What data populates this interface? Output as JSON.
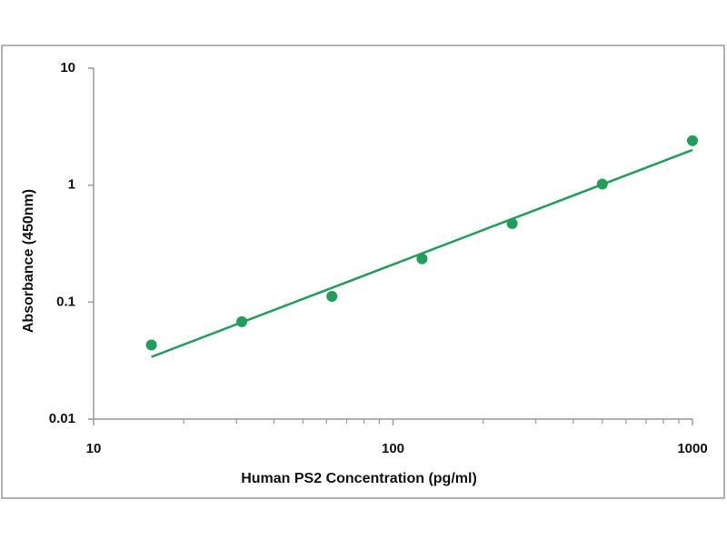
{
  "chart_data": {
    "type": "scatter",
    "xlabel": "Human PS2 Concentration (pg/ml)",
    "ylabel": "Absorbance (450nm)",
    "xscale": "log",
    "yscale": "log",
    "xlim": [
      10,
      1000
    ],
    "ylim": [
      0.01,
      10
    ],
    "xticks": [
      10,
      100,
      1000
    ],
    "xminorticks": [
      20,
      30,
      40,
      50,
      60,
      70,
      80,
      90,
      200,
      300,
      400,
      500,
      600,
      700,
      800,
      900
    ],
    "yticks": [
      0.01,
      0.1,
      1,
      10
    ],
    "series": [
      {
        "type": "scatter",
        "color": "#1f9e5c",
        "x": [
          15.6,
          31.25,
          62.5,
          125,
          250,
          500,
          1000
        ],
        "values": [
          0.043,
          0.068,
          0.112,
          0.235,
          0.47,
          1.02,
          2.4
        ]
      },
      {
        "type": "line",
        "color": "#1f9e5c",
        "x": [
          15.6,
          1000
        ],
        "values": [
          0.034,
          2.0
        ]
      }
    ]
  }
}
